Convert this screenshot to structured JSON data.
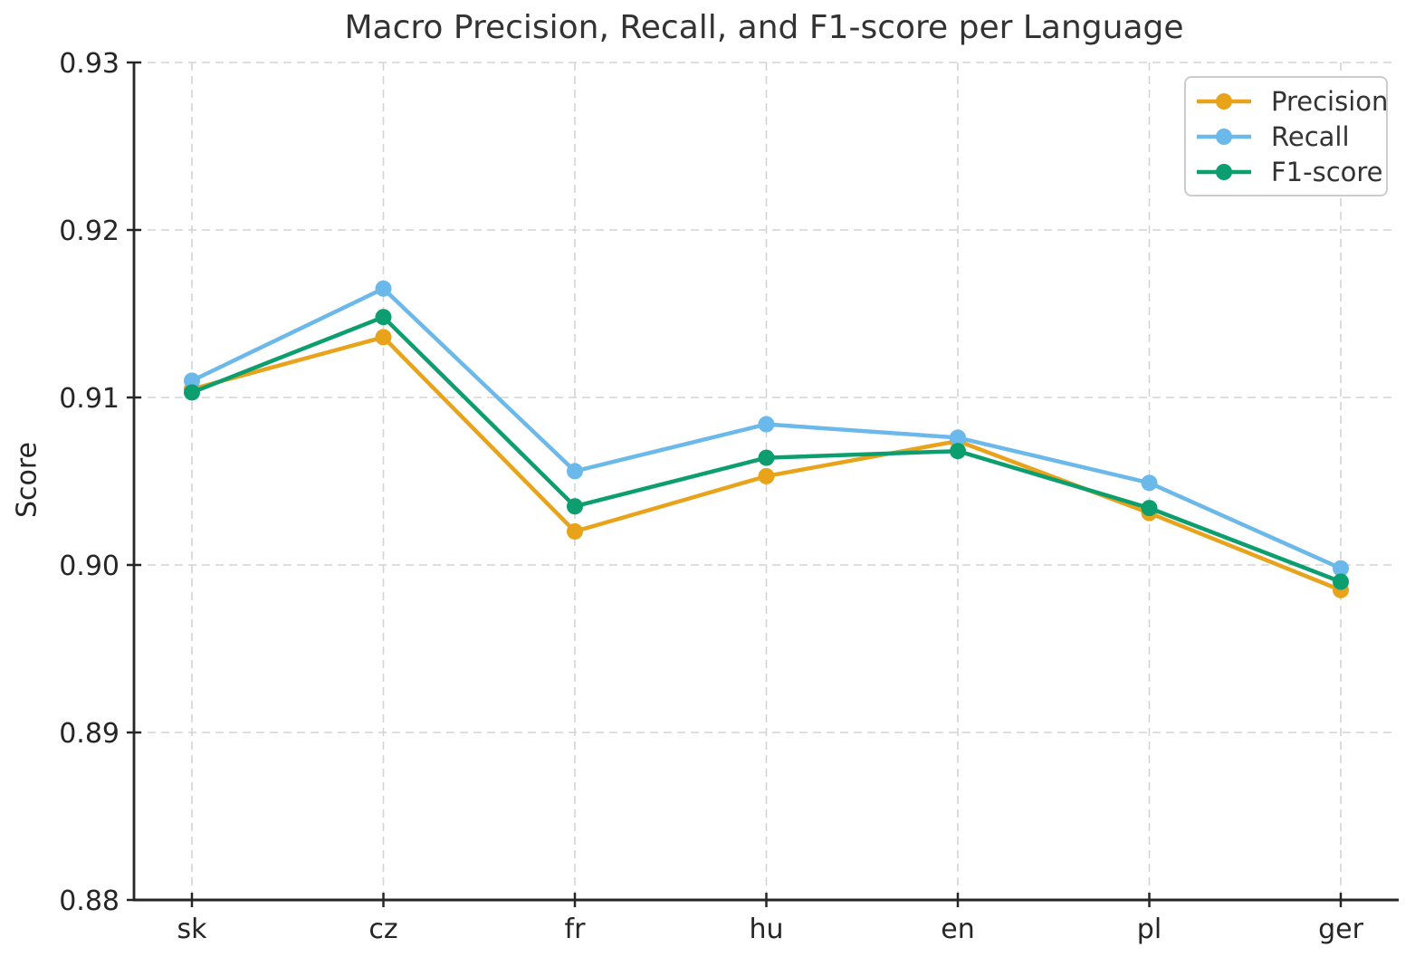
{
  "chart_data": {
    "type": "line",
    "title": "Macro Precision, Recall, and F1-score per Language",
    "xlabel": "",
    "ylabel": "Score",
    "categories": [
      "sk",
      "cz",
      "fr",
      "hu",
      "en",
      "pl",
      "ger"
    ],
    "series": [
      {
        "name": "Precision",
        "color": "#E9A31B",
        "values": [
          0.9105,
          0.9136,
          0.902,
          0.9053,
          0.9074,
          0.9031,
          0.8985
        ]
      },
      {
        "name": "Recall",
        "color": "#6BB8EA",
        "values": [
          0.911,
          0.9165,
          0.9056,
          0.9084,
          0.9076,
          0.9049,
          0.8998
        ]
      },
      {
        "name": "F1-score",
        "color": "#0C9E6E",
        "values": [
          0.9103,
          0.9148,
          0.9035,
          0.9064,
          0.9068,
          0.9034,
          0.899
        ]
      }
    ],
    "ylim": [
      0.88,
      0.93
    ],
    "ytick_labels": [
      "0.88",
      "0.89",
      "0.90",
      "0.91",
      "0.92",
      "0.93"
    ],
    "grid": true,
    "legend_position": "upper right"
  },
  "style": {
    "grid_color": "#d4d4d4",
    "axis_color": "#262626",
    "tick_text_color": "#262626",
    "title_color": "#333333",
    "background": "#ffffff"
  }
}
